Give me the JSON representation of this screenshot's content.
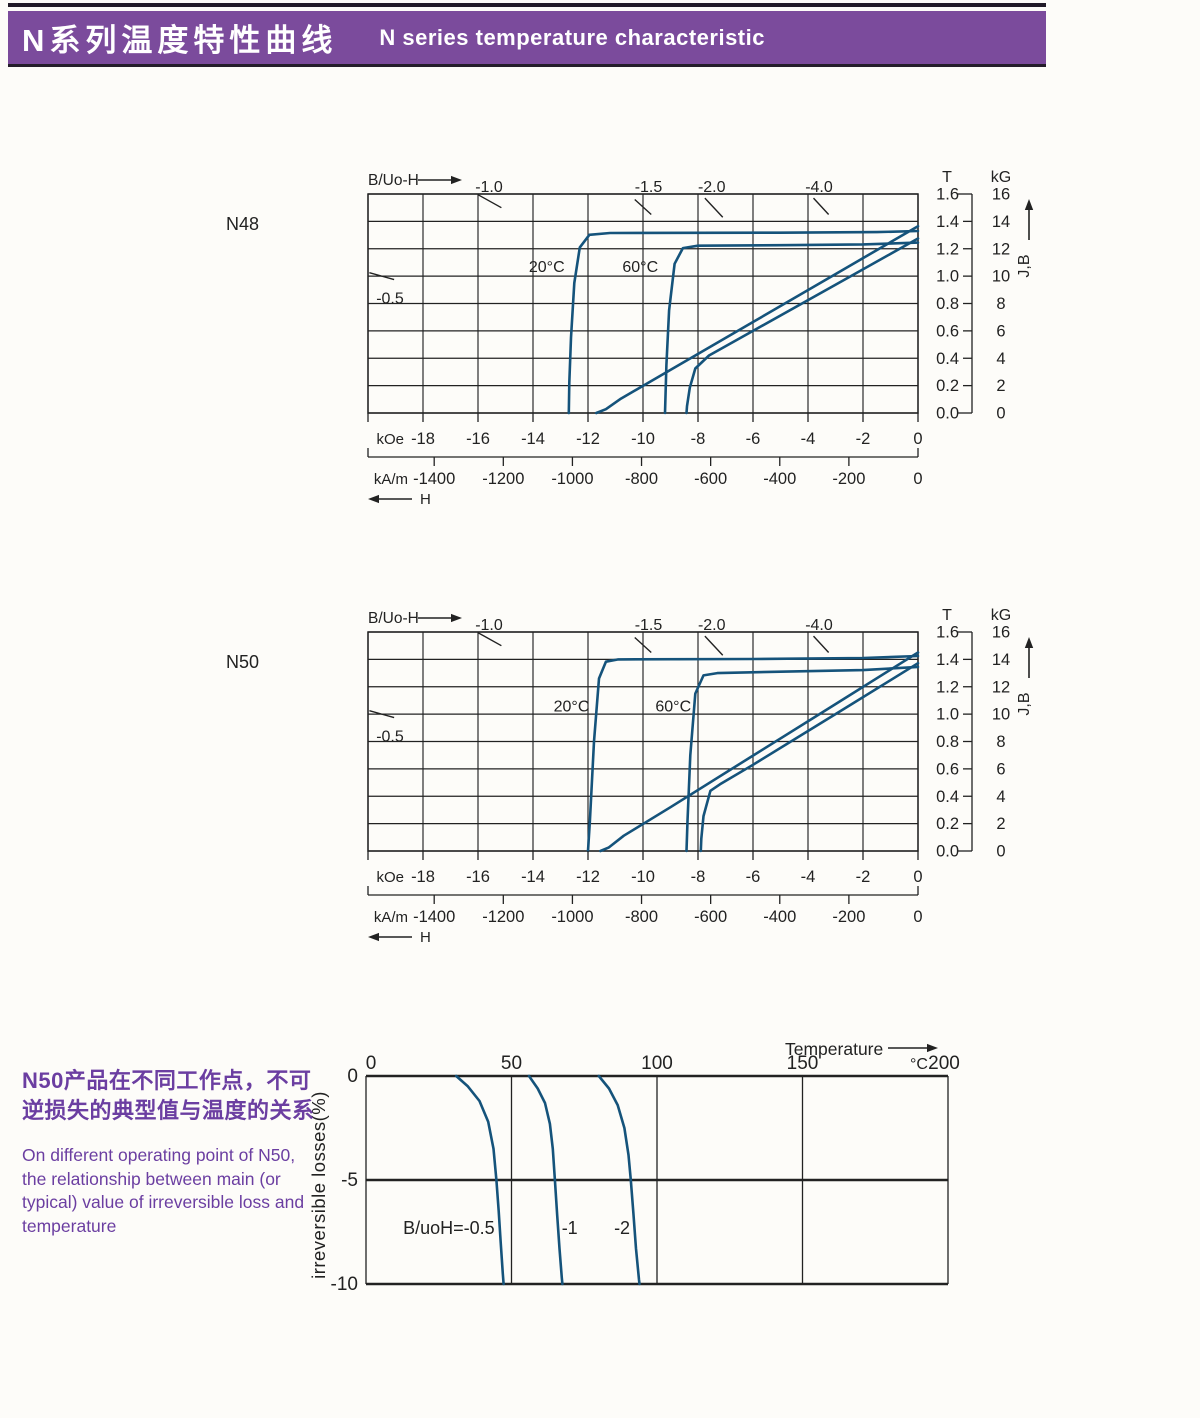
{
  "header": {
    "title_zh": "N系列温度特性曲线",
    "title_en": "N  series temperature characteristic"
  },
  "side_text": {
    "zh_lines": [
      "N50产品在不同工作点，不可",
      "逆损失的典型值与温度的关系"
    ],
    "en_lines": [
      "On different operating point of N50,",
      "the relationship between main (or",
      "typical) value of irreversible loss and",
      "temperature"
    ]
  },
  "colors": {
    "curve": "#15537b",
    "grid": "#222222",
    "accent_purple": "#7b4b9c",
    "note_purple": "#6b3ea1"
  },
  "chart_data": [
    {
      "id": "n48",
      "type": "line",
      "grade_label": "N48",
      "title": "B/Uo-H",
      "h_label": "H",
      "jb_label": "J,B",
      "x_units": [
        "kOe",
        "kA/m"
      ],
      "y_units": [
        "T",
        "kG"
      ],
      "xlim": [
        -20,
        0
      ],
      "ylim": [
        0,
        1.6
      ],
      "x_ticks_kOe": [
        -18,
        -16,
        -14,
        -12,
        -10,
        -8,
        -6,
        -4,
        -2,
        0
      ],
      "x_ticks_kAm": [
        -1400,
        -1200,
        -1000,
        -800,
        -600,
        -400,
        -200,
        0
      ],
      "y_ticks_T": [
        "1.6",
        "1.4",
        "1.2",
        "1.0",
        "0.8",
        "0.6",
        "0.4",
        "0.2",
        "0.0"
      ],
      "y_ticks_kG": [
        "16",
        "14",
        "12",
        "10",
        "8",
        "6",
        "4",
        "2",
        "0"
      ],
      "load_lines": [
        {
          "label": "-1.0",
          "label_x": -15.6,
          "tick": [
            -16.0,
            1.595,
            -15.15,
            1.5
          ]
        },
        {
          "label": "-1.5",
          "label_x": -9.8,
          "tick": [
            -10.3,
            1.56,
            -9.7,
            1.45
          ]
        },
        {
          "label": "-2.0",
          "label_x": -7.5,
          "tick": [
            -7.75,
            1.57,
            -7.1,
            1.43
          ]
        },
        {
          "label": "-4.0",
          "label_x": -3.6,
          "tick": [
            -3.8,
            1.57,
            -3.25,
            1.45
          ]
        },
        {
          "label": "-0.5",
          "label_x": -19.2,
          "label_y": 0.8,
          "tick": [
            -19.95,
            1.025,
            -19.05,
            0.975
          ]
        }
      ],
      "curve_labels": [
        {
          "text": "20°C",
          "x": -13.5,
          "y": 1.03
        },
        {
          "text": "60°C",
          "x": -10.1,
          "y": 1.03
        }
      ],
      "series": [
        {
          "name": "J 20°C",
          "points": [
            [
              0,
              1.33
            ],
            [
              -1.5,
              1.322
            ],
            [
              -5,
              1.317
            ],
            [
              -11.2,
              1.315
            ],
            [
              -11.95,
              1.302
            ],
            [
              -12.3,
              1.21
            ],
            [
              -12.5,
              0.95
            ],
            [
              -12.62,
              0.55
            ],
            [
              -12.68,
              0.22
            ],
            [
              -12.7,
              0
            ]
          ]
        },
        {
          "name": "B 20°C",
          "points": [
            [
              0,
              1.365
            ],
            [
              -3,
              1.015
            ],
            [
              -6,
              0.665
            ],
            [
              -9,
              0.315
            ],
            [
              -10.8,
              0.105
            ],
            [
              -11.35,
              0.028
            ],
            [
              -11.7,
              0
            ]
          ]
        },
        {
          "name": "J 60°C",
          "points": [
            [
              0,
              1.245
            ],
            [
              -2,
              1.232
            ],
            [
              -5,
              1.226
            ],
            [
              -8,
              1.222
            ],
            [
              -8.55,
              1.205
            ],
            [
              -8.85,
              1.09
            ],
            [
              -9.05,
              0.75
            ],
            [
              -9.15,
              0.35
            ],
            [
              -9.2,
              0
            ]
          ]
        },
        {
          "name": "B 60°C",
          "points": [
            [
              0,
              1.275
            ],
            [
              -3,
              0.937
            ],
            [
              -6,
              0.6
            ],
            [
              -7.6,
              0.42
            ],
            [
              -8.1,
              0.325
            ],
            [
              -8.3,
              0.185
            ],
            [
              -8.4,
              0.05
            ],
            [
              -8.42,
              0
            ]
          ]
        }
      ]
    },
    {
      "id": "n50",
      "type": "line",
      "grade_label": "N50",
      "title": "B/Uo-H",
      "h_label": "H",
      "jb_label": "J,B",
      "x_units": [
        "kOe",
        "kA/m"
      ],
      "y_units": [
        "T",
        "kG"
      ],
      "xlim": [
        -20,
        0
      ],
      "ylim": [
        0,
        1.6
      ],
      "x_ticks_kOe": [
        -18,
        -16,
        -14,
        -12,
        -10,
        -8,
        -6,
        -4,
        -2,
        0
      ],
      "x_ticks_kAm": [
        -1400,
        -1200,
        -1000,
        -800,
        -600,
        -400,
        -200,
        0
      ],
      "y_ticks_T": [
        "1.6",
        "1.4",
        "1.2",
        "1.0",
        "0.8",
        "0.6",
        "0.4",
        "0.2",
        "0.0"
      ],
      "y_ticks_kG": [
        "16",
        "14",
        "12",
        "10",
        "8",
        "6",
        "4",
        "2",
        "0"
      ],
      "load_lines": [
        {
          "label": "-1.0",
          "label_x": -15.6,
          "tick": [
            -16.0,
            1.595,
            -15.15,
            1.5
          ]
        },
        {
          "label": "-1.5",
          "label_x": -9.8,
          "tick": [
            -10.3,
            1.56,
            -9.7,
            1.45
          ]
        },
        {
          "label": "-2.0",
          "label_x": -7.5,
          "tick": [
            -7.75,
            1.57,
            -7.1,
            1.43
          ]
        },
        {
          "label": "-4.0",
          "label_x": -3.6,
          "tick": [
            -3.8,
            1.57,
            -3.25,
            1.45
          ]
        },
        {
          "label": "-0.5",
          "label_x": -19.2,
          "label_y": 0.8,
          "tick": [
            -19.95,
            1.025,
            -19.05,
            0.975
          ]
        }
      ],
      "curve_labels": [
        {
          "text": "20°C",
          "x": -12.6,
          "y": 1.02
        },
        {
          "text": "60°C",
          "x": -8.9,
          "y": 1.02
        }
      ],
      "series": [
        {
          "name": "J 20°C",
          "points": [
            [
              0,
              1.425
            ],
            [
              -2,
              1.41
            ],
            [
              -6,
              1.403
            ],
            [
              -10.9,
              1.4
            ],
            [
              -11.35,
              1.383
            ],
            [
              -11.6,
              1.26
            ],
            [
              -11.78,
              0.8
            ],
            [
              -11.93,
              0.22
            ],
            [
              -12,
              0
            ]
          ]
        },
        {
          "name": "B 20°C",
          "points": [
            [
              0,
              1.45
            ],
            [
              -3,
              1.073
            ],
            [
              -6,
              0.697
            ],
            [
              -9,
              0.32
            ],
            [
              -10.7,
              0.112
            ],
            [
              -11.25,
              0.025
            ],
            [
              -11.55,
              0
            ]
          ]
        },
        {
          "name": "J 60°C",
          "points": [
            [
              0,
              1.345
            ],
            [
              -2,
              1.322
            ],
            [
              -5,
              1.31
            ],
            [
              -7.3,
              1.3
            ],
            [
              -7.8,
              1.283
            ],
            [
              -8.1,
              1.15
            ],
            [
              -8.28,
              0.7
            ],
            [
              -8.38,
              0.22
            ],
            [
              -8.42,
              0
            ]
          ]
        },
        {
          "name": "B 60°C",
          "points": [
            [
              0,
              1.372
            ],
            [
              -3,
              1.0
            ],
            [
              -6,
              0.63
            ],
            [
              -7.2,
              0.487
            ],
            [
              -7.55,
              0.44
            ],
            [
              -7.8,
              0.255
            ],
            [
              -7.88,
              0.09
            ],
            [
              -7.9,
              0
            ]
          ]
        }
      ]
    },
    {
      "id": "loss",
      "type": "line",
      "xlabel": "Temperature",
      "x_unit": "°C",
      "ylabel": "irreversible  losses(%)",
      "xlim": [
        0,
        200
      ],
      "ylim": [
        -10,
        0
      ],
      "x_ticks": [
        0,
        50,
        100,
        150,
        200
      ],
      "y_ticks": [
        0,
        -5,
        -10
      ],
      "curve_labels": [
        {
          "text": "B/uoH=-0.5",
          "x": 28.5,
          "y": -7.3
        },
        {
          "text": "-1",
          "x": 70,
          "y": -7.3
        },
        {
          "text": "-2",
          "x": 88,
          "y": -7.3
        }
      ],
      "series": [
        {
          "name": "B/uoH=-0.5",
          "points": [
            [
              31,
              0
            ],
            [
              35,
              -0.5
            ],
            [
              39,
              -1.2
            ],
            [
              42,
              -2.2
            ],
            [
              43.8,
              -3.5
            ],
            [
              44.8,
              -5
            ],
            [
              45.6,
              -6.5
            ],
            [
              46.3,
              -8
            ],
            [
              47,
              -9.5
            ],
            [
              47.3,
              -10
            ]
          ]
        },
        {
          "name": "-1",
          "points": [
            [
              56,
              0
            ],
            [
              59,
              -0.6
            ],
            [
              61.5,
              -1.3
            ],
            [
              63.2,
              -2.3
            ],
            [
              64.2,
              -3.5
            ],
            [
              64.9,
              -5
            ],
            [
              65.7,
              -6.7
            ],
            [
              66.5,
              -8.3
            ],
            [
              67.3,
              -9.7
            ],
            [
              67.5,
              -10
            ]
          ]
        },
        {
          "name": "-2",
          "points": [
            [
              80,
              0
            ],
            [
              83.5,
              -0.6
            ],
            [
              86.5,
              -1.4
            ],
            [
              88.8,
              -2.5
            ],
            [
              90.2,
              -3.8
            ],
            [
              91,
              -5
            ],
            [
              91.9,
              -6.6
            ],
            [
              92.8,
              -8.3
            ],
            [
              93.8,
              -9.8
            ],
            [
              94,
              -10
            ]
          ]
        }
      ]
    }
  ]
}
